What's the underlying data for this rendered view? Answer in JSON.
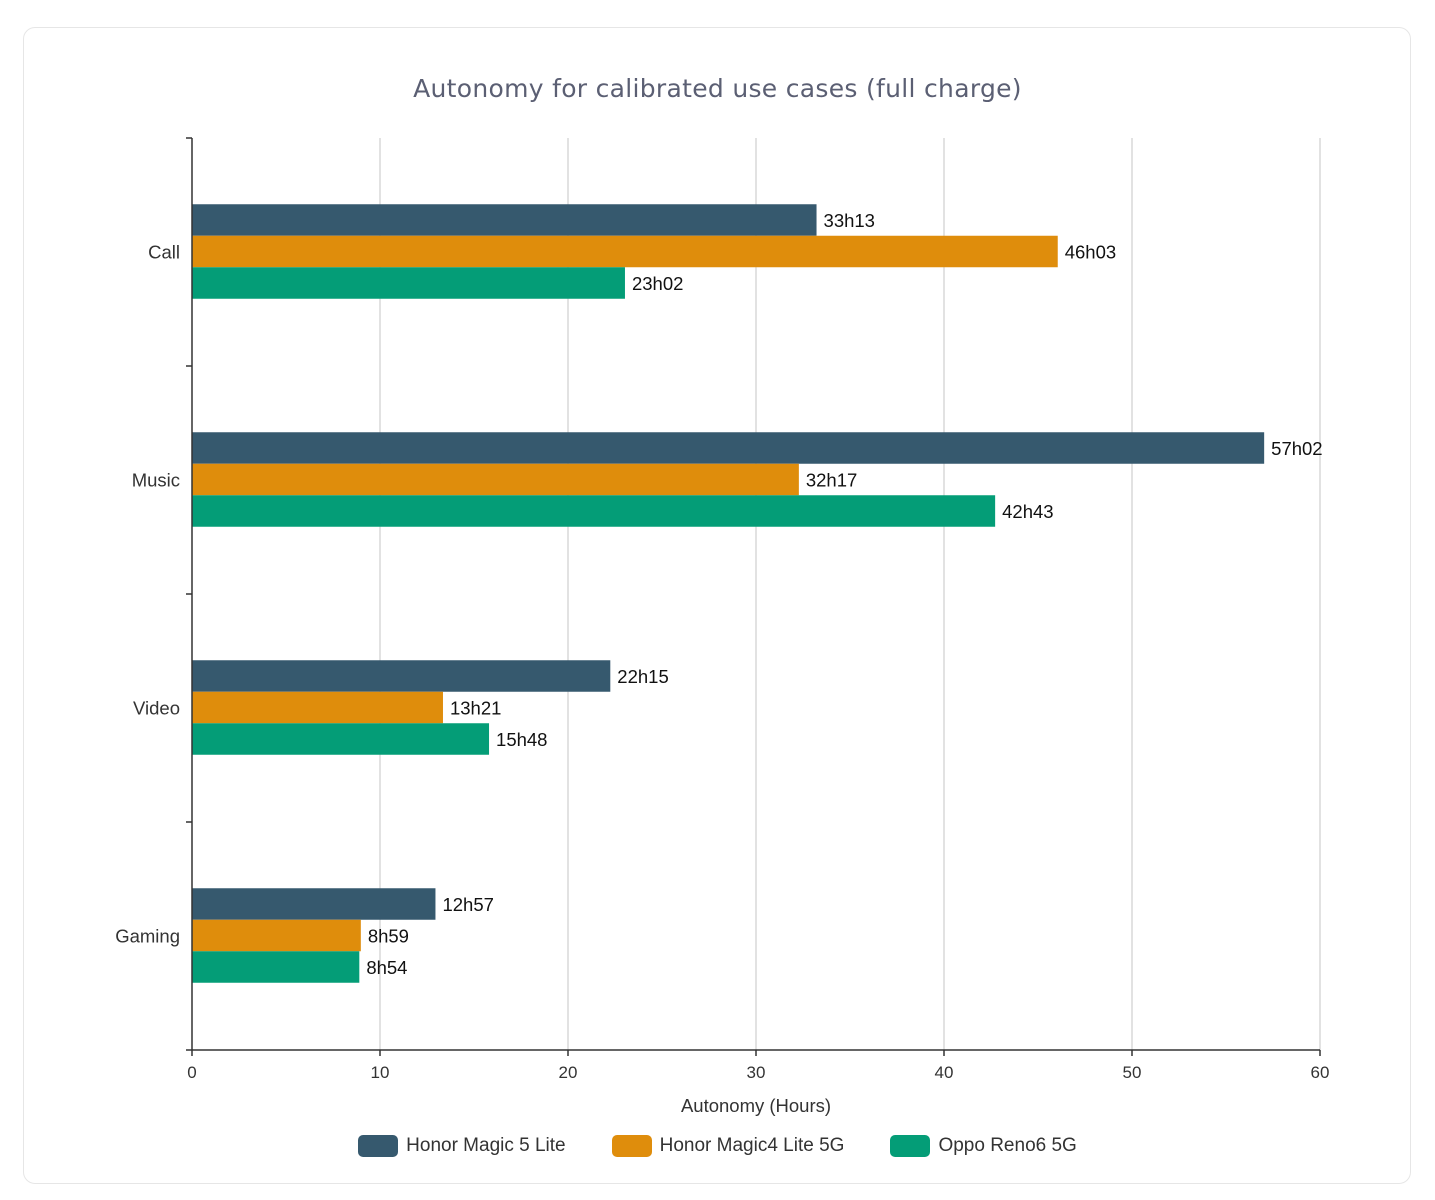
{
  "chart_data": {
    "type": "bar",
    "orientation": "horizontal",
    "title": "Autonomy for calibrated use cases (full charge)",
    "xlabel": "Autonomy (Hours)",
    "ylabel": "",
    "xlim": [
      0,
      60
    ],
    "xticks": [
      0,
      10,
      20,
      30,
      40,
      50,
      60
    ],
    "grid": "vertical",
    "legend": "bottom",
    "categories": [
      "Call",
      "Music",
      "Video",
      "Gaming"
    ],
    "series": [
      {
        "name": "Honor Magic 5 Lite",
        "color": "#36596e",
        "values": [
          33.22,
          57.03,
          22.25,
          12.95
        ],
        "labels": [
          "33h13",
          "57h02",
          "22h15",
          "12h57"
        ]
      },
      {
        "name": "Honor Magic4 Lite 5G",
        "color": "#df8d0c",
        "values": [
          46.05,
          32.28,
          13.35,
          8.98
        ],
        "labels": [
          "46h03",
          "32h17",
          "13h21",
          "8h59"
        ]
      },
      {
        "name": "Oppo Reno6 5G",
        "color": "#049d77",
        "values": [
          23.03,
          42.72,
          15.8,
          8.9
        ],
        "labels": [
          "23h02",
          "42h43",
          "15h48",
          "8h54"
        ]
      }
    ]
  }
}
